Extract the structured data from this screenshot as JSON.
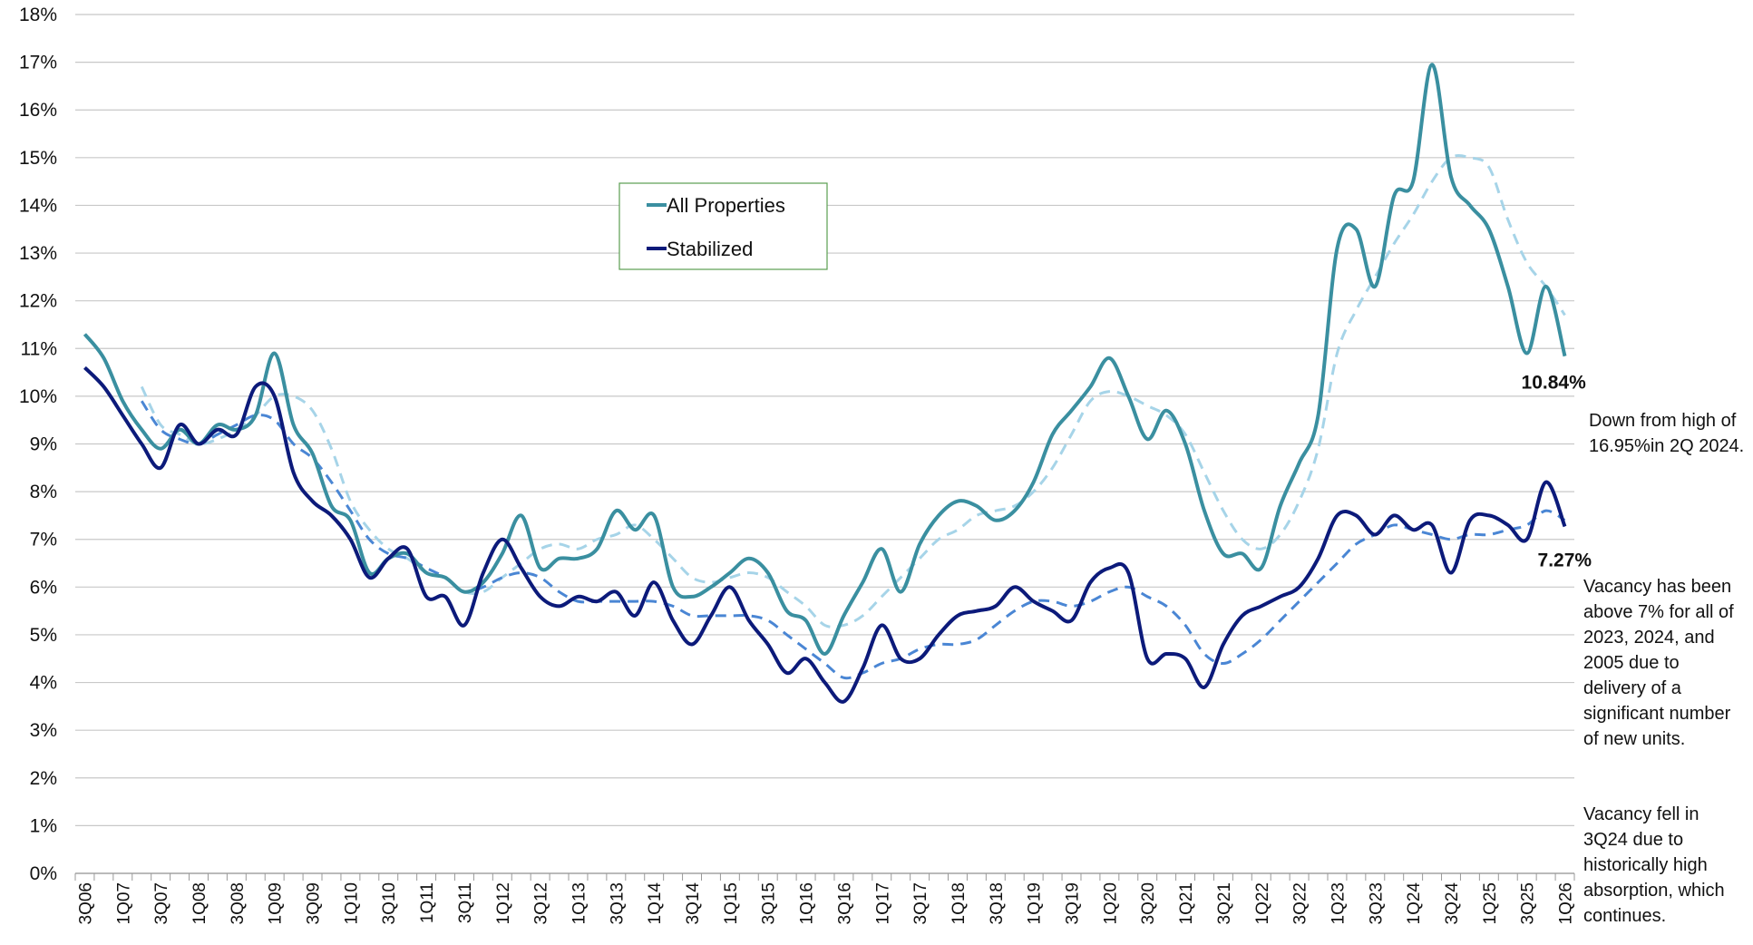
{
  "chart_data": {
    "type": "line",
    "categories": [
      "3Q06",
      null,
      "1Q07",
      null,
      "3Q07",
      null,
      "1Q08",
      null,
      "3Q08",
      null,
      "1Q09",
      null,
      "3Q09",
      null,
      "1Q10",
      null,
      "3Q10",
      null,
      "1Q11",
      null,
      "3Q11",
      null,
      "1Q12",
      null,
      "3Q12",
      null,
      "1Q13",
      null,
      "3Q13",
      null,
      "1Q14",
      null,
      "3Q14",
      null,
      "1Q15",
      null,
      "3Q15",
      null,
      "1Q16",
      null,
      "3Q16",
      null,
      "1Q17",
      null,
      "3Q17",
      null,
      "1Q18",
      null,
      "3Q18",
      null,
      "1Q19",
      null,
      "3Q19",
      null,
      "1Q20",
      null,
      "3Q20",
      null,
      "1Q21",
      null,
      "3Q21",
      null,
      "1Q22",
      null,
      "3Q22",
      null,
      "1Q23",
      null,
      "3Q23",
      null,
      "1Q24",
      null,
      "3Q24",
      null,
      "1Q25",
      null,
      "3Q25",
      null,
      "1Q26"
    ],
    "series": [
      {
        "name": "All Properties",
        "color": "#3a8fa0",
        "values": [
          11.3,
          10.8,
          9.9,
          9.3,
          8.9,
          9.3,
          9.0,
          9.4,
          9.3,
          9.6,
          10.9,
          9.4,
          8.8,
          7.7,
          7.4,
          6.3,
          6.6,
          6.7,
          6.3,
          6.2,
          5.9,
          6.1,
          6.7,
          7.5,
          6.4,
          6.6,
          6.6,
          6.8,
          7.6,
          7.2,
          7.5,
          6.0,
          5.8,
          6.0,
          6.3,
          6.6,
          6.3,
          5.5,
          5.3,
          4.6,
          5.4,
          6.1,
          6.8,
          5.9,
          6.9,
          7.5,
          7.8,
          7.7,
          7.4,
          7.6,
          8.2,
          9.2,
          9.7,
          10.2,
          10.8,
          10.0,
          9.1,
          9.7,
          9.0,
          7.6,
          6.7,
          6.7,
          6.4,
          7.7,
          8.6,
          9.6,
          13.1,
          13.5,
          12.3,
          14.2,
          14.5,
          16.95,
          14.6,
          14.0,
          13.5,
          12.3,
          10.9,
          12.3,
          10.84
        ]
      },
      {
        "name": "Stabilized",
        "color": "#0c1a7a",
        "values": [
          10.6,
          10.2,
          9.6,
          9.0,
          8.5,
          9.4,
          9.0,
          9.3,
          9.2,
          10.2,
          10.0,
          8.4,
          7.8,
          7.5,
          7.0,
          6.2,
          6.6,
          6.8,
          5.8,
          5.8,
          5.2,
          6.3,
          7.0,
          6.4,
          5.8,
          5.6,
          5.8,
          5.7,
          5.9,
          5.4,
          6.1,
          5.3,
          4.8,
          5.4,
          6.0,
          5.3,
          4.8,
          4.2,
          4.5,
          4.0,
          3.6,
          4.3,
          5.2,
          4.5,
          4.5,
          5.0,
          5.4,
          5.5,
          5.6,
          6.0,
          5.7,
          5.5,
          5.3,
          6.1,
          6.4,
          6.3,
          4.5,
          4.6,
          4.5,
          3.9,
          4.8,
          5.4,
          5.6,
          5.8,
          6.0,
          6.6,
          7.5,
          7.5,
          7.1,
          7.5,
          7.2,
          7.3,
          6.3,
          7.4,
          7.5,
          7.3,
          7.0,
          8.2,
          7.27
        ]
      },
      {
        "color": "#a6d4e8",
        "dashed": true,
        "values": [
          null,
          null,
          null,
          10.2,
          9.4,
          9.2,
          9.0,
          9.1,
          9.3,
          9.6,
          10.0,
          10.0,
          9.7,
          8.9,
          7.8,
          7.2,
          6.8,
          6.6,
          6.3,
          6.2,
          5.9,
          5.9,
          6.2,
          6.5,
          6.8,
          6.9,
          6.8,
          7.0,
          7.1,
          7.3,
          7.0,
          6.6,
          6.2,
          6.1,
          6.2,
          6.3,
          6.2,
          5.9,
          5.6,
          5.2,
          5.2,
          5.4,
          5.8,
          6.2,
          6.6,
          7.0,
          7.2,
          7.5,
          7.6,
          7.7,
          8.0,
          8.5,
          9.2,
          9.9,
          10.1,
          10.0,
          9.8,
          9.6,
          9.2,
          8.4,
          7.6,
          7.0,
          6.8,
          7.1,
          7.8,
          8.9,
          10.9,
          11.8,
          12.5,
          13.2,
          13.8,
          14.5,
          15.0,
          15.0,
          14.8,
          13.7,
          12.8,
          12.3,
          11.7
        ]
      },
      {
        "color": "#4a86d4",
        "dashed": true,
        "values": [
          null,
          null,
          null,
          9.9,
          9.3,
          9.1,
          9.0,
          9.2,
          9.4,
          9.6,
          9.5,
          9.0,
          8.7,
          8.2,
          7.6,
          7.0,
          6.7,
          6.6,
          6.4,
          6.2,
          5.9,
          6.0,
          6.2,
          6.3,
          6.2,
          5.9,
          5.7,
          5.7,
          5.7,
          5.7,
          5.7,
          5.6,
          5.4,
          5.4,
          5.4,
          5.4,
          5.3,
          5.0,
          4.7,
          4.4,
          4.1,
          4.2,
          4.4,
          4.5,
          4.7,
          4.8,
          4.8,
          4.9,
          5.2,
          5.5,
          5.7,
          5.7,
          5.6,
          5.7,
          5.9,
          6.0,
          5.8,
          5.6,
          5.2,
          4.6,
          4.4,
          4.6,
          4.9,
          5.3,
          5.7,
          6.1,
          6.5,
          6.9,
          7.1,
          7.3,
          7.2,
          7.1,
          7.0,
          7.1,
          7.1,
          7.2,
          7.3,
          7.6,
          7.4
        ]
      }
    ],
    "ylim": [
      0,
      18
    ],
    "yticks": [
      {
        "value": 0,
        "label": "0%"
      },
      {
        "value": 1,
        "label": "1%"
      },
      {
        "value": 2,
        "label": "2%"
      },
      {
        "value": 3,
        "label": "3%"
      },
      {
        "value": 4,
        "label": "4%"
      },
      {
        "value": 5,
        "label": "5%"
      },
      {
        "value": 6,
        "label": "6%"
      },
      {
        "value": 7,
        "label": "7%"
      },
      {
        "value": 8,
        "label": "8%"
      },
      {
        "value": 9,
        "label": "9%"
      },
      {
        "value": 10,
        "label": "10%"
      },
      {
        "value": 11,
        "label": "11%"
      },
      {
        "value": 12,
        "label": "12%"
      },
      {
        "value": 13,
        "label": "13%"
      },
      {
        "value": 14,
        "label": "14%"
      },
      {
        "value": 15,
        "label": "15%"
      },
      {
        "value": 16,
        "label": "16%"
      },
      {
        "value": 17,
        "label": "17%"
      },
      {
        "value": 18,
        "label": "18%"
      }
    ],
    "grid": true,
    "legend": "upper-center",
    "value_labels": [
      "10.84%",
      "7.27%"
    ],
    "annotations": [
      "Down from high of 16.95%in 2Q 2024.",
      "Vacancy has been above 7% for all of 2023, 2024, and 2005 due to delivery of a significant number of new units.",
      "Vacancy fell in 3Q24 due to historically high absorption, which continues."
    ]
  }
}
